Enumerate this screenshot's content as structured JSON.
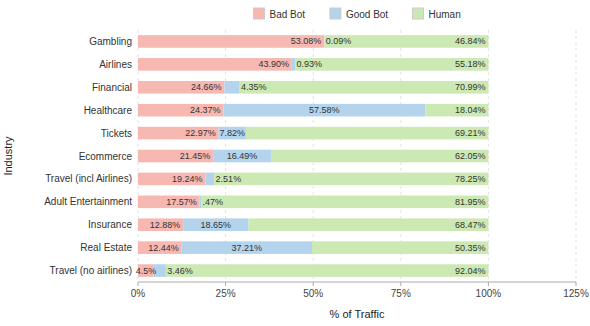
{
  "chart_data": {
    "type": "bar",
    "orientation": "horizontal",
    "stacked": true,
    "categories": [
      "Gambling",
      "Airlines",
      "Financial",
      "Healthcare",
      "Tickets",
      "Ecommerce",
      "Travel (incl Airlines)",
      "Adult Entertainment",
      "Insurance",
      "Real Estate",
      "Travel (no airlines)"
    ],
    "series": [
      {
        "name": "Bad Bot",
        "color": "#f7b8b2",
        "values": [
          53.08,
          43.9,
          24.66,
          24.37,
          22.97,
          21.45,
          19.24,
          17.57,
          12.88,
          12.44,
          4.5
        ],
        "value_labels": [
          "53.08%",
          "43.90%",
          "24.66%",
          "24.37%",
          "22.97%",
          "21.45%",
          "19.24%",
          "17.57%",
          "12.88%",
          "12.44%",
          "4.5%"
        ]
      },
      {
        "name": "Good Bot",
        "color": "#b3d4ec",
        "values": [
          0.09,
          0.93,
          4.35,
          57.58,
          7.82,
          16.49,
          2.51,
          0.47,
          18.65,
          37.21,
          3.46
        ],
        "value_labels": [
          "0.09%",
          "0.93%",
          "4.35%",
          "57.58%",
          "7.82%",
          "16.49%",
          "2.51%",
          ".47%",
          "18.65%",
          "37.21%",
          "3.46%"
        ]
      },
      {
        "name": "Human",
        "color": "#cce9b4",
        "values": [
          46.84,
          55.18,
          70.99,
          18.04,
          69.21,
          62.05,
          78.25,
          81.95,
          68.47,
          50.35,
          92.04
        ],
        "value_labels": [
          "46.84%",
          "55.18%",
          "70.99%",
          "18.04%",
          "69.21%",
          "62.05%",
          "78.25%",
          "81.95%",
          "68.47%",
          "50.35%",
          "92.04%"
        ]
      }
    ],
    "xlabel": "% of Traffic",
    "ylabel": "Industry",
    "xlim": [
      0,
      125
    ],
    "xticks": [
      {
        "value": 0,
        "label": "0%"
      },
      {
        "value": 25,
        "label": "25%"
      },
      {
        "value": 50,
        "label": "50%"
      },
      {
        "value": 75,
        "label": "75%"
      },
      {
        "value": 100,
        "label": "100%"
      },
      {
        "value": 125,
        "label": "125%"
      }
    ],
    "grid": true,
    "legend": "upper center",
    "data_labels": true
  }
}
